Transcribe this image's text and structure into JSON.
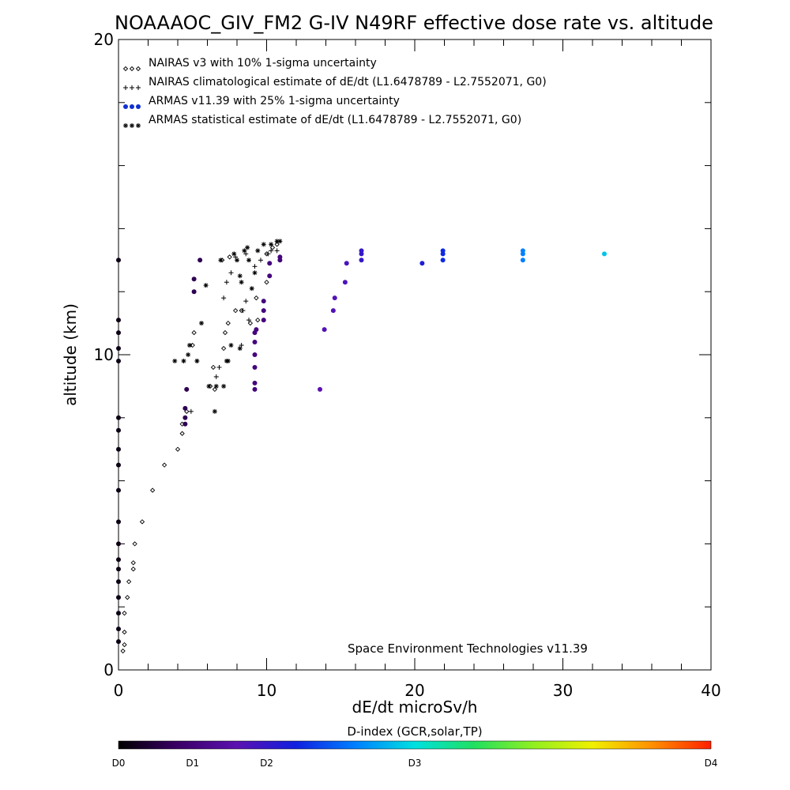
{
  "chart_data": {
    "type": "scatter",
    "title": "NOAAAOC_GIV_FM2 G-IV   N49RF  effective dose rate vs. altitude",
    "xlabel": "dE/dt microSv/h",
    "ylabel": "altitude (km)",
    "xlim": [
      0,
      40
    ],
    "ylim": [
      0,
      20
    ],
    "x_ticks": [
      "0",
      "10",
      "20",
      "30",
      "40"
    ],
    "y_ticks": [
      "0",
      "10",
      "20"
    ],
    "credit": "Space Environment Technologies v11.39",
    "legend": {
      "placement": "top-left",
      "entries": [
        {
          "marker": "◇◇◇",
          "label": "NAIRAS v3 with 10% 1-sigma uncertainty"
        },
        {
          "marker": "+++",
          "label": "NAIRAS climatological estimate of dE/dt (L1.6478789 - L2.7552071, G0)"
        },
        {
          "marker": "●●●",
          "label": "ARMAS v11.39 with 25% 1-sigma uncertainty",
          "color": "#1030d0"
        },
        {
          "marker": "***",
          "label": "ARMAS statistical estimate of dE/dt (L1.6478789 - L2.7552071, G0)"
        }
      ]
    },
    "colorbar": {
      "title": "D-index (GCR,solar,TP)",
      "ticks": [
        {
          "label": "D0",
          "pos": 0
        },
        {
          "label": "D1",
          "pos": 0.125
        },
        {
          "label": "D2",
          "pos": 0.25
        },
        {
          "label": "D3",
          "pos": 0.5
        },
        {
          "label": "D4",
          "pos": 1
        }
      ],
      "stops": [
        "#000000",
        "#3a0066",
        "#5a10b0",
        "#1020e0",
        "#0080ff",
        "#00e0e0",
        "#20e060",
        "#90f020",
        "#f0f000",
        "#ff9000",
        "#ff2000"
      ]
    },
    "series": [
      {
        "name": "NAIRAS v3",
        "marker": "diamond",
        "points": [
          [
            0.3,
            0.6
          ],
          [
            0.4,
            0.8
          ],
          [
            0.4,
            1.2
          ],
          [
            0.4,
            1.8
          ],
          [
            0.6,
            2.3
          ],
          [
            0.7,
            2.8
          ],
          [
            1.0,
            3.2
          ],
          [
            1.0,
            3.4
          ],
          [
            1.1,
            4.0
          ],
          [
            1.6,
            4.7
          ],
          [
            2.3,
            5.7
          ],
          [
            3.1,
            6.5
          ],
          [
            4.0,
            7.0
          ],
          [
            4.3,
            7.5
          ],
          [
            4.3,
            7.8
          ],
          [
            4.6,
            8.2
          ],
          [
            4.6,
            8.9
          ],
          [
            5.0,
            10.3
          ],
          [
            5.1,
            10.7
          ],
          [
            6.2,
            9.0
          ],
          [
            6.4,
            9.6
          ],
          [
            6.5,
            8.9
          ],
          [
            7.1,
            10.2
          ],
          [
            7.2,
            10.7
          ],
          [
            7.4,
            11.0
          ],
          [
            7.9,
            11.4
          ],
          [
            8.3,
            11.4
          ],
          [
            8.9,
            11.0
          ],
          [
            9.3,
            11.8
          ],
          [
            9.4,
            11.1
          ],
          [
            10.0,
            12.3
          ],
          [
            10.0,
            13.2
          ],
          [
            10.4,
            13.4
          ],
          [
            10.7,
            13.5
          ],
          [
            7.0,
            13.0
          ],
          [
            7.5,
            13.1
          ]
        ]
      },
      {
        "name": "NAIRAS climatological estimate",
        "marker": "plus",
        "points": [
          [
            4.9,
            8.2
          ],
          [
            5.3,
            9.8
          ],
          [
            6.6,
            9.3
          ],
          [
            6.8,
            9.6
          ],
          [
            7.1,
            11.8
          ],
          [
            7.3,
            12.3
          ],
          [
            7.6,
            12.6
          ],
          [
            8.3,
            10.3
          ],
          [
            8.4,
            11.4
          ],
          [
            8.6,
            11.7
          ],
          [
            8.8,
            11.1
          ],
          [
            9.2,
            12.8
          ],
          [
            9.6,
            13.0
          ],
          [
            10.1,
            13.2
          ],
          [
            10.3,
            13.3
          ],
          [
            10.7,
            13.3
          ],
          [
            7.9,
            13.1
          ],
          [
            8.6,
            13.2
          ]
        ]
      },
      {
        "name": "ARMAS v11.39",
        "marker": "dot",
        "points": [
          [
            0,
            0.9
          ],
          [
            0,
            1.3
          ],
          [
            0,
            1.8
          ],
          [
            0,
            2.3
          ],
          [
            0,
            2.8
          ],
          [
            0,
            3.2
          ],
          [
            0,
            3.5
          ],
          [
            0,
            4.0
          ],
          [
            0,
            4.7
          ],
          [
            0,
            5.7
          ],
          [
            0,
            6.5
          ],
          [
            0,
            7.0
          ],
          [
            0,
            7.6
          ],
          [
            0,
            8.0
          ],
          [
            0,
            9.8
          ],
          [
            0,
            10.2
          ],
          [
            0,
            10.7
          ],
          [
            0,
            11.1
          ],
          [
            0,
            13.0
          ],
          [
            4.5,
            7.8
          ],
          [
            4.5,
            8.0
          ],
          [
            4.5,
            8.3
          ],
          [
            4.6,
            8.9
          ],
          [
            5.1,
            12.0
          ],
          [
            5.1,
            12.4
          ],
          [
            5.5,
            13.0
          ],
          [
            9.2,
            8.9
          ],
          [
            9.2,
            9.1
          ],
          [
            9.2,
            9.6
          ],
          [
            9.2,
            10.0
          ],
          [
            9.2,
            10.4
          ],
          [
            9.2,
            10.7
          ],
          [
            9.3,
            10.8
          ],
          [
            9.8,
            11.1
          ],
          [
            9.8,
            11.4
          ],
          [
            9.8,
            11.7
          ],
          [
            10.2,
            12.5
          ],
          [
            10.2,
            12.9
          ],
          [
            10.9,
            13.0
          ],
          [
            10.9,
            13.1
          ],
          [
            13.6,
            8.9
          ],
          [
            13.9,
            10.8
          ],
          [
            14.5,
            11.4
          ],
          [
            14.6,
            11.8
          ],
          [
            15.3,
            12.3
          ],
          [
            15.4,
            12.9
          ],
          [
            16.4,
            13.0
          ],
          [
            16.4,
            13.2
          ],
          [
            16.4,
            13.3
          ],
          [
            20.5,
            12.9
          ],
          [
            21.9,
            13.0
          ],
          [
            21.9,
            13.2
          ],
          [
            21.9,
            13.3
          ],
          [
            27.3,
            13.0
          ],
          [
            27.3,
            13.2
          ],
          [
            27.3,
            13.3
          ],
          [
            32.8,
            13.2
          ]
        ],
        "d_index": [
          0.02,
          0.02,
          0.02,
          0.02,
          0.02,
          0.02,
          0.02,
          0.02,
          0.02,
          0.02,
          0.02,
          0.02,
          0.02,
          0.02,
          0.02,
          0.02,
          0.02,
          0.02,
          0.02,
          0.08,
          0.08,
          0.08,
          0.08,
          0.08,
          0.08,
          0.08,
          0.13,
          0.13,
          0.13,
          0.13,
          0.13,
          0.13,
          0.13,
          0.13,
          0.13,
          0.13,
          0.13,
          0.13,
          0.13,
          0.13,
          0.2,
          0.21,
          0.21,
          0.21,
          0.22,
          0.22,
          0.25,
          0.25,
          0.25,
          0.28,
          0.31,
          0.31,
          0.31,
          0.4,
          0.4,
          0.4,
          0.47
        ]
      },
      {
        "name": "ARMAS statistical estimate",
        "marker": "asterisk",
        "points": [
          [
            3.8,
            9.8
          ],
          [
            4.4,
            9.8
          ],
          [
            4.7,
            10.0
          ],
          [
            4.8,
            10.3
          ],
          [
            5.3,
            9.8
          ],
          [
            5.6,
            11.0
          ],
          [
            5.9,
            12.2
          ],
          [
            6.1,
            9.0
          ],
          [
            6.5,
            8.2
          ],
          [
            6.6,
            9.0
          ],
          [
            6.9,
            13.0
          ],
          [
            7.1,
            9.0
          ],
          [
            7.3,
            9.8
          ],
          [
            7.6,
            10.3
          ],
          [
            7.8,
            13.2
          ],
          [
            8.0,
            13.0
          ],
          [
            8.2,
            12.5
          ],
          [
            8.3,
            12.3
          ],
          [
            8.5,
            13.3
          ],
          [
            8.7,
            13.4
          ],
          [
            9.0,
            12.1
          ],
          [
            9.2,
            12.6
          ],
          [
            9.4,
            13.3
          ],
          [
            9.8,
            13.5
          ],
          [
            10.3,
            13.5
          ],
          [
            10.7,
            13.6
          ],
          [
            10.9,
            13.6
          ],
          [
            7.4,
            9.8
          ],
          [
            8.2,
            10.2
          ],
          [
            8.8,
            13.0
          ]
        ]
      }
    ]
  }
}
